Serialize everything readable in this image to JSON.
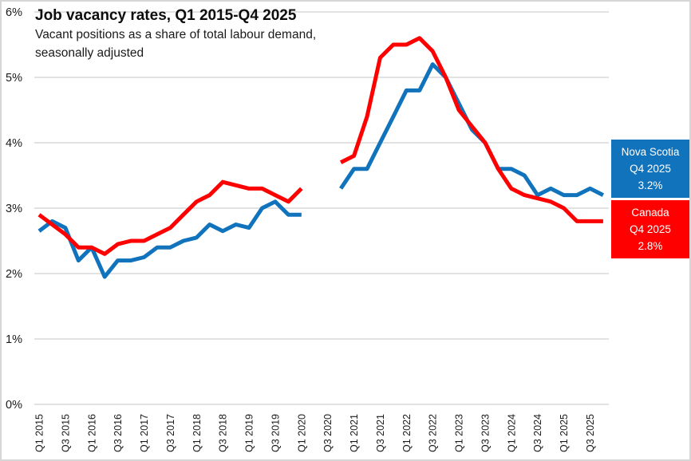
{
  "title": "Job vacancy rates, Q1 2015-Q4 2025",
  "subtitle_line1": "Vacant positions as a share of total labour demand,",
  "subtitle_line2": "seasonally adjusted",
  "chart_data": {
    "type": "line",
    "title": "Job vacancy rates, Q1 2015-Q4 2025",
    "subtitle": "Vacant positions as a share of total labour demand, seasonally adjusted",
    "grid": "horizontal",
    "legend_position": "right-callouts",
    "ylim": [
      0,
      6
    ],
    "yticks": [
      0,
      1,
      2,
      3,
      4,
      5,
      6
    ],
    "ytick_labels": [
      "0%",
      "1%",
      "2%",
      "3%",
      "4%",
      "5%",
      "6%"
    ],
    "x_label_every": 2,
    "data_gap_quarters": [
      "Q2 2020",
      "Q3 2020"
    ],
    "categories": [
      "Q1 2015",
      "Q2 2015",
      "Q3 2015",
      "Q4 2015",
      "Q1 2016",
      "Q2 2016",
      "Q3 2016",
      "Q4 2016",
      "Q1 2017",
      "Q2 2017",
      "Q3 2017",
      "Q4 2017",
      "Q1 2018",
      "Q2 2018",
      "Q3 2018",
      "Q4 2018",
      "Q1 2019",
      "Q2 2019",
      "Q3 2019",
      "Q4 2019",
      "Q1 2020",
      "Q2 2020",
      "Q3 2020",
      "Q4 2020",
      "Q1 2021",
      "Q2 2021",
      "Q3 2021",
      "Q4 2021",
      "Q1 2022",
      "Q2 2022",
      "Q3 2022",
      "Q4 2022",
      "Q1 2023",
      "Q2 2023",
      "Q3 2023",
      "Q4 2023",
      "Q1 2024",
      "Q2 2024",
      "Q3 2024",
      "Q4 2024",
      "Q1 2025",
      "Q2 2025",
      "Q3 2025",
      "Q4 2025"
    ],
    "series": [
      {
        "name": "Nova Scotia",
        "color": "#1273BD",
        "values": [
          2.65,
          2.8,
          2.7,
          2.2,
          2.4,
          1.95,
          2.2,
          2.2,
          2.25,
          2.4,
          2.4,
          2.5,
          2.55,
          2.75,
          2.65,
          2.75,
          2.7,
          3.0,
          3.1,
          2.9,
          2.9,
          null,
          null,
          3.3,
          3.6,
          3.6,
          4.0,
          4.4,
          4.8,
          4.8,
          5.2,
          5.0,
          4.6,
          4.2,
          4.0,
          3.6,
          3.6,
          3.5,
          3.2,
          3.3,
          3.2,
          3.2,
          3.3,
          3.2
        ]
      },
      {
        "name": "Canada",
        "color": "#FF0000",
        "values": [
          2.9,
          2.75,
          2.6,
          2.4,
          2.4,
          2.3,
          2.45,
          2.5,
          2.5,
          2.6,
          2.7,
          2.9,
          3.1,
          3.2,
          3.4,
          3.35,
          3.3,
          3.3,
          3.2,
          3.1,
          3.3,
          null,
          null,
          3.7,
          3.8,
          4.4,
          5.3,
          5.5,
          5.5,
          5.6,
          5.4,
          5.0,
          4.5,
          4.25,
          4.0,
          3.6,
          3.3,
          3.2,
          3.15,
          3.1,
          3.0,
          2.8,
          2.8,
          2.8
        ]
      }
    ]
  },
  "annotations": {
    "nova_scotia_box": {
      "line1": "Nova Scotia",
      "line2": "Q4 2025",
      "line3": "3.2%",
      "bg": "#1273BD"
    },
    "canada_box": {
      "line1": "Canada",
      "line2": "Q4 2025",
      "line3": "2.8%",
      "bg": "#FF0000"
    }
  },
  "colors": {
    "gridline": "#d9d9d9",
    "text": "#1a1a1a"
  }
}
